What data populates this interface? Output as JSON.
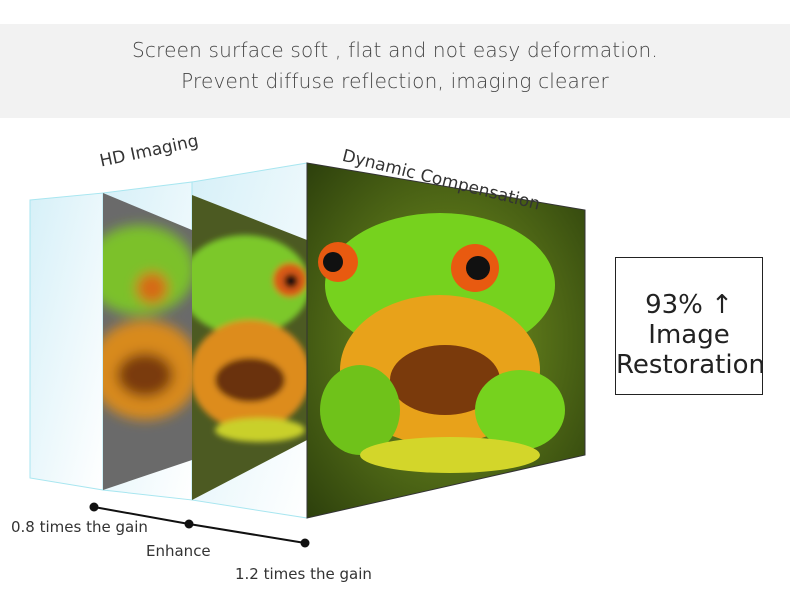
{
  "banner": {
    "line1": "Screen surface soft , flat and not easy deformation.",
    "line2": "Prevent diffuse reflection, imaging clearer"
  },
  "labels": {
    "hd_imaging": "HD Imaging",
    "dynamic_compensation": "Dynamic Compensation"
  },
  "restoration": {
    "percent": "93%",
    "arrow": "↑",
    "line1": "Image",
    "line2": "Restoration"
  },
  "scale": {
    "low": "0.8 times the gain",
    "mid": "Enhance",
    "high": "1.2 times the gain"
  },
  "colors": {
    "glass": "#dff4fa",
    "frog_green": "#6fcf1f",
    "frog_orange": "#e8a21a",
    "background_green": "#3d5a12"
  }
}
